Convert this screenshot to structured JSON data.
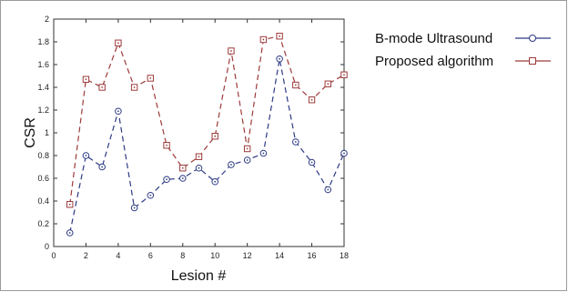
{
  "chart_data": {
    "type": "line",
    "xlabel": "Lesion #",
    "ylabel": "CSR",
    "xlim": [
      0,
      18
    ],
    "ylim": [
      0,
      2
    ],
    "xticks": [
      0,
      2,
      4,
      6,
      8,
      10,
      12,
      14,
      16,
      18
    ],
    "yticks": [
      0,
      0.2,
      0.4,
      0.6,
      0.8,
      1,
      1.2,
      1.4,
      1.6,
      1.8,
      2
    ],
    "ytick_labels": [
      "0",
      "0.2",
      "0.4",
      "0.6",
      "0.8",
      "1",
      "1.2",
      "1.4",
      "1.6",
      "1.8",
      "2"
    ],
    "grid": false,
    "legend_position": "outside-right",
    "x": [
      1,
      2,
      3,
      4,
      5,
      6,
      7,
      8,
      9,
      10,
      11,
      12,
      13,
      14,
      15,
      16,
      17,
      18
    ],
    "series": [
      {
        "name": "B-mode Ultrasound",
        "color": "#2d3a84",
        "marker": "circle",
        "linestyle": "dashed",
        "values": [
          0.12,
          0.8,
          0.7,
          1.19,
          0.34,
          0.45,
          0.59,
          0.6,
          0.69,
          0.57,
          0.72,
          0.76,
          0.82,
          1.65,
          0.92,
          0.74,
          0.5,
          0.82
        ]
      },
      {
        "name": "Proposed algorithm",
        "color": "#9c3a3a",
        "marker": "square",
        "linestyle": "dashed",
        "values": [
          0.37,
          1.47,
          1.4,
          1.79,
          1.4,
          1.48,
          0.89,
          0.69,
          0.79,
          0.97,
          1.72,
          0.86,
          1.82,
          1.85,
          1.42,
          1.29,
          1.43,
          1.51
        ]
      }
    ]
  }
}
